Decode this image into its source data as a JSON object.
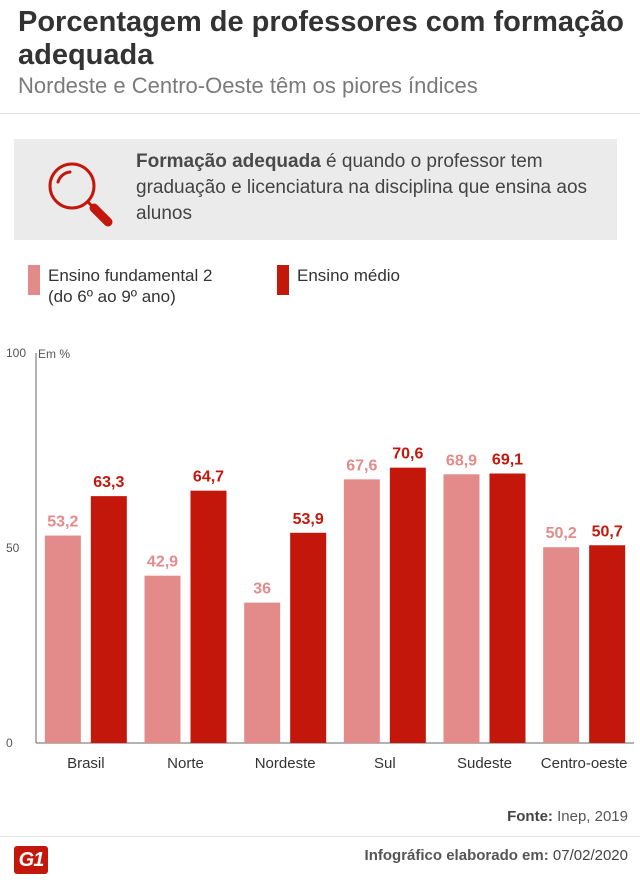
{
  "header": {
    "title": "Porcentagem de professores com formação adequada",
    "subtitle": "Nordeste e Centro-Oeste têm os piores índices"
  },
  "info": {
    "icon": "magnifier-icon",
    "bold": "Formação adequada",
    "text": " é quando o professor tem graduação e licenciatura na disciplina que ensina aos alunos"
  },
  "legend": {
    "fundamental": "Ensino fundamental 2",
    "fundamental_sub": "(do 6º ao 9º ano)",
    "medio": "Ensino médio"
  },
  "colors": {
    "fundamental": "#e38b8b",
    "medio": "#c4170c",
    "accent": "#c4170c"
  },
  "chart_data": {
    "type": "bar",
    "unit_label": "Em %",
    "categories": [
      "Brasil",
      "Norte",
      "Nordeste",
      "Sul",
      "Sudeste",
      "Centro-oeste"
    ],
    "series": [
      {
        "name": "Ensino fundamental 2 (do 6º ao 9º ano)",
        "values": [
          53.2,
          42.9,
          36,
          67.6,
          68.9,
          50.2
        ],
        "labels": [
          "53,2",
          "42,9",
          "36",
          "67,6",
          "68,9",
          "50,2"
        ]
      },
      {
        "name": "Ensino médio",
        "values": [
          63.3,
          64.7,
          53.9,
          70.6,
          69.1,
          50.7
        ],
        "labels": [
          "63,3",
          "64,7",
          "53,9",
          "70,6",
          "69,1",
          "50,7"
        ]
      }
    ],
    "yticks": [
      0,
      50,
      100
    ],
    "ylim": [
      0,
      100
    ]
  },
  "footer": {
    "source_label": "Fonte:",
    "source": " Inep, 2019",
    "logo": "G1",
    "credit_label": "Infográfico elaborado em:",
    "credit_date": " 07/02/2020"
  }
}
